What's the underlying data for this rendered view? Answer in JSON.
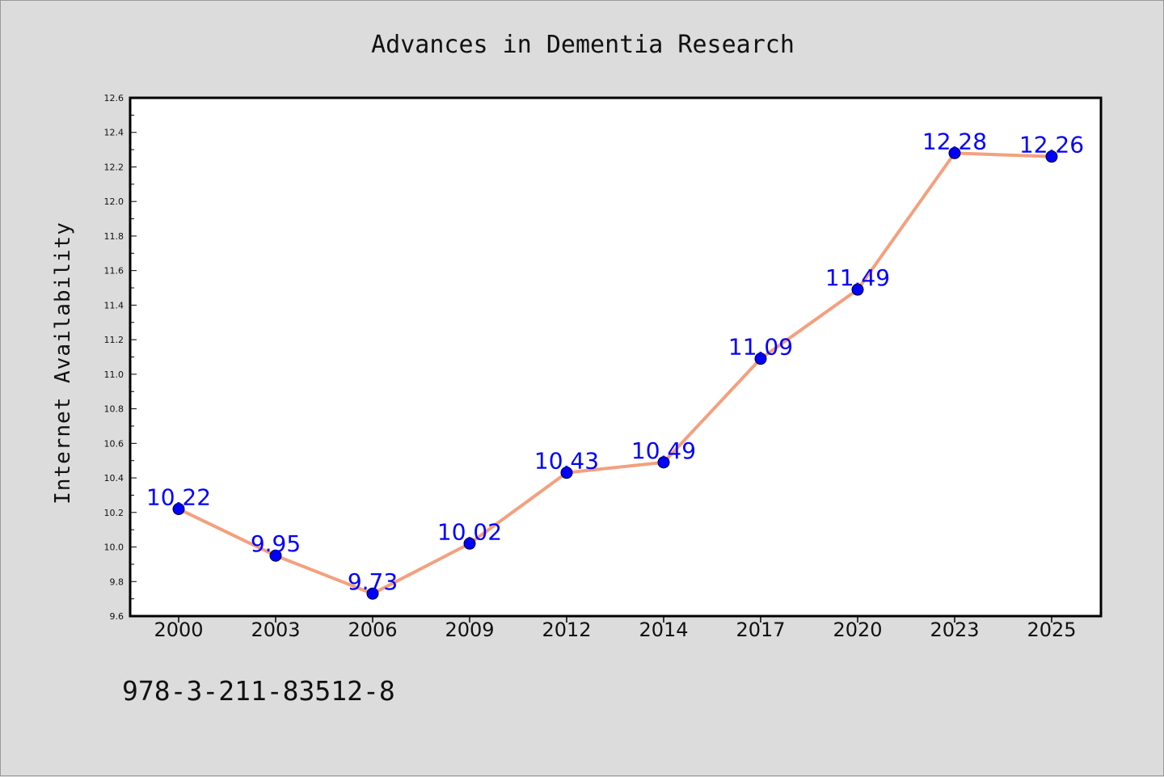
{
  "chart_data": {
    "type": "line",
    "title": "Advances in Dementia Research",
    "xlabel": "",
    "ylabel": "Internet Availability",
    "categories": [
      "2000",
      "2003",
      "2006",
      "2009",
      "2012",
      "2014",
      "2017",
      "2020",
      "2023",
      "2025"
    ],
    "series": [
      {
        "values": [
          10.22,
          9.95,
          9.73,
          10.02,
          10.43,
          10.49,
          11.09,
          11.49,
          12.28,
          12.26
        ],
        "data_labels": [
          "10.22",
          "9.95",
          "9.73",
          "10.02",
          "10.43",
          "10.49",
          "11.09",
          "11.49",
          "12.28",
          "12.26"
        ],
        "line_color": "#f4a07e",
        "marker_color": "#0000ff"
      }
    ],
    "ylim": [
      9.6,
      12.6
    ],
    "yticks": [
      "9.6",
      "9.8",
      "10.0",
      "10.2",
      "10.4",
      "10.6",
      "10.8",
      "11.0",
      "11.2",
      "11.4",
      "11.6",
      "11.8",
      "12.0",
      "12.2",
      "12.4",
      "12.6"
    ],
    "grid": false,
    "legend": "none"
  },
  "footer": {
    "text": "978-3-211-83512-8"
  },
  "colors": {
    "background": "#dcdcdc",
    "plot_background": "#ffffff",
    "label_color": "#0000ff"
  }
}
